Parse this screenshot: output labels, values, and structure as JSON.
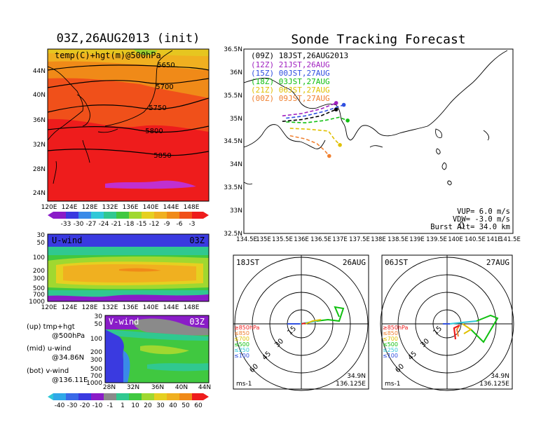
{
  "left": {
    "title": "03Z,26AUG2013 (init)",
    "map": {
      "label": "temp(C)+hgt(m)@500hPa",
      "lat_ticks": [
        "44N",
        "40N",
        "36N",
        "32N",
        "28N",
        "24N"
      ],
      "lon_ticks": [
        "120E",
        "124E",
        "128E",
        "132E",
        "136E",
        "140E",
        "144E",
        "148E"
      ],
      "contours": [
        "5650",
        "5700",
        "5750",
        "5800",
        "5850"
      ],
      "colorbar": [
        "-33",
        "-30",
        "-27",
        "-24",
        "-21",
        "-18",
        "-15",
        "-12",
        "-9",
        "-6",
        "-3"
      ]
    },
    "uwind": {
      "label": "U-wind",
      "time": "03Z",
      "p_ticks": [
        "30",
        "50",
        "100",
        "200",
        "300",
        "500",
        "700",
        "1000"
      ],
      "lon_ticks": [
        "120E",
        "124E",
        "128E",
        "132E",
        "136E",
        "140E",
        "144E",
        "148E"
      ]
    },
    "vwind": {
      "label": "V-wind",
      "time": "03Z",
      "p_ticks": [
        "30",
        "50",
        "100",
        "200",
        "300",
        "500",
        "700",
        "1000"
      ],
      "lat_ticks": [
        "28N",
        "32N",
        "36N",
        "40N",
        "44N"
      ],
      "colorbar": [
        "-40",
        "-30",
        "-20",
        "-10",
        "-1",
        "1",
        "10",
        "20",
        "30",
        "40",
        "50",
        "60"
      ]
    },
    "legend": {
      "up1": "(up) tmp+hgt",
      "up2": "@500hPa",
      "mid1": "(mid) u-wind",
      "mid2": "@34.86N",
      "bot1": "(bot) v-wind",
      "bot2": "@136.11E"
    }
  },
  "right": {
    "title": "Sonde Tracking Forecast",
    "lat_ticks": [
      "36.5N",
      "36N",
      "35.5N",
      "35N",
      "34.5N",
      "34N",
      "33.5N",
      "33N",
      "32.5N"
    ],
    "lon_ticks": [
      "134.5E",
      "135E",
      "135.5E",
      "136E",
      "136.5E",
      "137E",
      "137.5E",
      "138E",
      "138.5E",
      "139E",
      "139.5E",
      "140E",
      "140.5E",
      "141E",
      "141.5E"
    ],
    "legend": [
      {
        "label": "(09Z)  18JST,26AUG2013",
        "color": "#000000"
      },
      {
        "label": "(12Z)  21JST,26AUG",
        "color": "#a020c0"
      },
      {
        "label": "(15Z)  00JST,27AUG",
        "color": "#3050e0"
      },
      {
        "label": "(18Z)  03JST,27AUG",
        "color": "#10c010"
      },
      {
        "label": "(21Z)  06JST,27AUG",
        "color": "#e0c000"
      },
      {
        "label": "(00Z)  09JST,27AUG",
        "color": "#f08030"
      }
    ],
    "params": {
      "vup": "VUP=  6.0  m/s",
      "vdw": "VDW= -3.0  m/s",
      "burst": "Burst Alt= 34.0  km"
    }
  },
  "hodographs": [
    {
      "time": "18JST",
      "date": "26AUG",
      "lat": "34.9N",
      "lon": "136.125E",
      "unit": "ms-1",
      "rings": [
        "15",
        "30",
        "45",
        "60"
      ],
      "levels": [
        "≥850hPa",
        "≤850",
        "≤700",
        "≤500",
        "≤250",
        "≤100"
      ]
    },
    {
      "time": "06JST",
      "date": "27AUG",
      "lat": "34.9N",
      "lon": "136.125E",
      "unit": "ms-1",
      "rings": [
        "15",
        "30",
        "45",
        "60"
      ],
      "levels": [
        "≥850hPa",
        "≤850",
        "≤700",
        "≤500",
        "≤250",
        "≤100"
      ]
    }
  ],
  "chart_data": {
    "type": "line",
    "title": "Sonde Tracking Forecast",
    "xlim": [
      134.5,
      141.5
    ],
    "ylim": [
      32.5,
      36.5
    ],
    "series": [
      {
        "name": "(09Z)  18JST,26AUG2013",
        "x": [
          135.5,
          136.0,
          136.5,
          136.9
        ],
        "y": [
          34.93,
          34.97,
          35.05,
          35.19
        ]
      },
      {
        "name": "(12Z)  21JST,26AUG",
        "x": [
          135.5,
          136.0,
          136.5,
          136.9
        ],
        "y": [
          35.05,
          35.1,
          35.2,
          35.33
        ]
      },
      {
        "name": "(15Z)  00JST,27AUG",
        "x": [
          135.6,
          136.1,
          136.6,
          137.1
        ],
        "y": [
          35.0,
          35.05,
          35.15,
          35.29
        ]
      },
      {
        "name": "(18Z)  03JST,27AUG",
        "x": [
          135.6,
          136.1,
          136.6,
          136.98,
          137.2
        ],
        "y": [
          34.92,
          34.9,
          34.95,
          35.02,
          34.95
        ]
      },
      {
        "name": "(21Z)  06JST,27AUG",
        "x": [
          135.7,
          136.2,
          136.7,
          136.85,
          137.0
        ],
        "y": [
          34.78,
          34.76,
          34.72,
          34.55,
          34.42
        ]
      },
      {
        "name": "(00Z)  09JST,27AUG",
        "x": [
          135.7,
          136.1,
          136.4,
          136.6,
          136.72
        ],
        "y": [
          34.62,
          34.55,
          34.45,
          34.3,
          34.18
        ]
      }
    ]
  }
}
